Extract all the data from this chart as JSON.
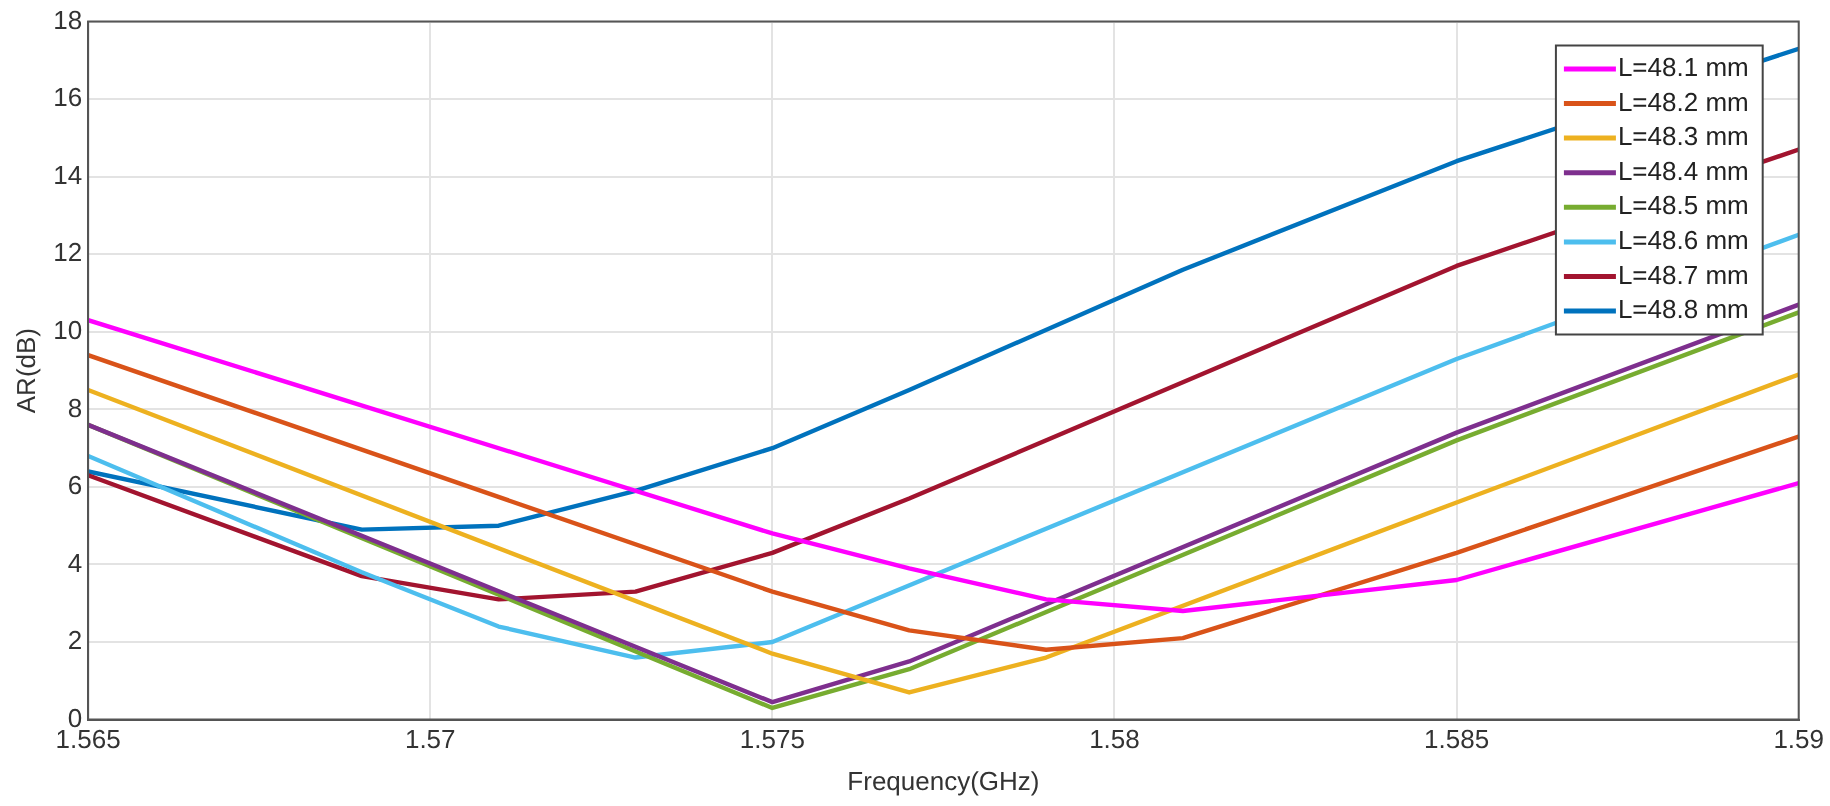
{
  "chart_data": {
    "type": "line",
    "xlabel": "Frequency(GHz)",
    "ylabel": "AR(dB)",
    "xlim": [
      1.565,
      1.59
    ],
    "xticks": [
      1.565,
      1.57,
      1.575,
      1.58,
      1.585,
      1.59
    ],
    "ylim": [
      0,
      18
    ],
    "yticks": [
      0,
      2,
      4,
      6,
      8,
      10,
      12,
      14,
      16,
      18
    ],
    "grid": true,
    "legend": "top right",
    "marker": "none",
    "line_style": "solid",
    "series": [
      {
        "name": "L=48.1 mm",
        "color": "#ff00ff",
        "x": [
          1.565,
          1.575,
          1.577,
          1.579,
          1.581,
          1.585,
          1.59
        ],
        "values": [
          10.3,
          4.8,
          3.9,
          3.1,
          2.8,
          3.6,
          6.1
        ]
      },
      {
        "name": "L=48.2 mm",
        "color": "#d95319",
        "x": [
          1.565,
          1.575,
          1.577,
          1.579,
          1.581,
          1.585,
          1.59
        ],
        "values": [
          9.4,
          3.3,
          2.3,
          1.8,
          2.1,
          4.3,
          7.3
        ]
      },
      {
        "name": "L=48.3 mm",
        "color": "#edb120",
        "x": [
          1.565,
          1.575,
          1.577,
          1.579,
          1.585,
          1.59
        ],
        "values": [
          8.5,
          1.7,
          0.7,
          1.6,
          5.6,
          8.9
        ]
      },
      {
        "name": "L=48.4 mm",
        "color": "#7e2f8e",
        "x": [
          1.565,
          1.575,
          1.577,
          1.585,
          1.59
        ],
        "values": [
          7.6,
          0.45,
          1.5,
          7.4,
          10.7
        ]
      },
      {
        "name": "L=48.5 mm",
        "color": "#77ac30",
        "x": [
          1.565,
          1.575,
          1.577,
          1.585,
          1.59
        ],
        "values": [
          7.6,
          0.3,
          1.3,
          7.2,
          10.5
        ]
      },
      {
        "name": "L=48.6 mm",
        "color": "#4dbeee",
        "x": [
          1.565,
          1.569,
          1.571,
          1.573,
          1.575,
          1.585,
          1.59
        ],
        "values": [
          6.8,
          3.8,
          2.4,
          1.6,
          2.0,
          9.3,
          12.5
        ]
      },
      {
        "name": "L=48.7 mm",
        "color": "#a2142f",
        "x": [
          1.565,
          1.569,
          1.571,
          1.573,
          1.575,
          1.577,
          1.585,
          1.59
        ],
        "values": [
          6.3,
          3.7,
          3.1,
          3.3,
          4.3,
          5.7,
          11.7,
          14.7
        ]
      },
      {
        "name": "L=48.8 mm",
        "color": "#0072bd",
        "x": [
          1.565,
          1.569,
          1.571,
          1.573,
          1.575,
          1.577,
          1.581,
          1.585,
          1.59
        ],
        "values": [
          6.4,
          4.9,
          5.0,
          5.9,
          7.0,
          8.5,
          11.6,
          14.4,
          17.3
        ]
      }
    ]
  }
}
